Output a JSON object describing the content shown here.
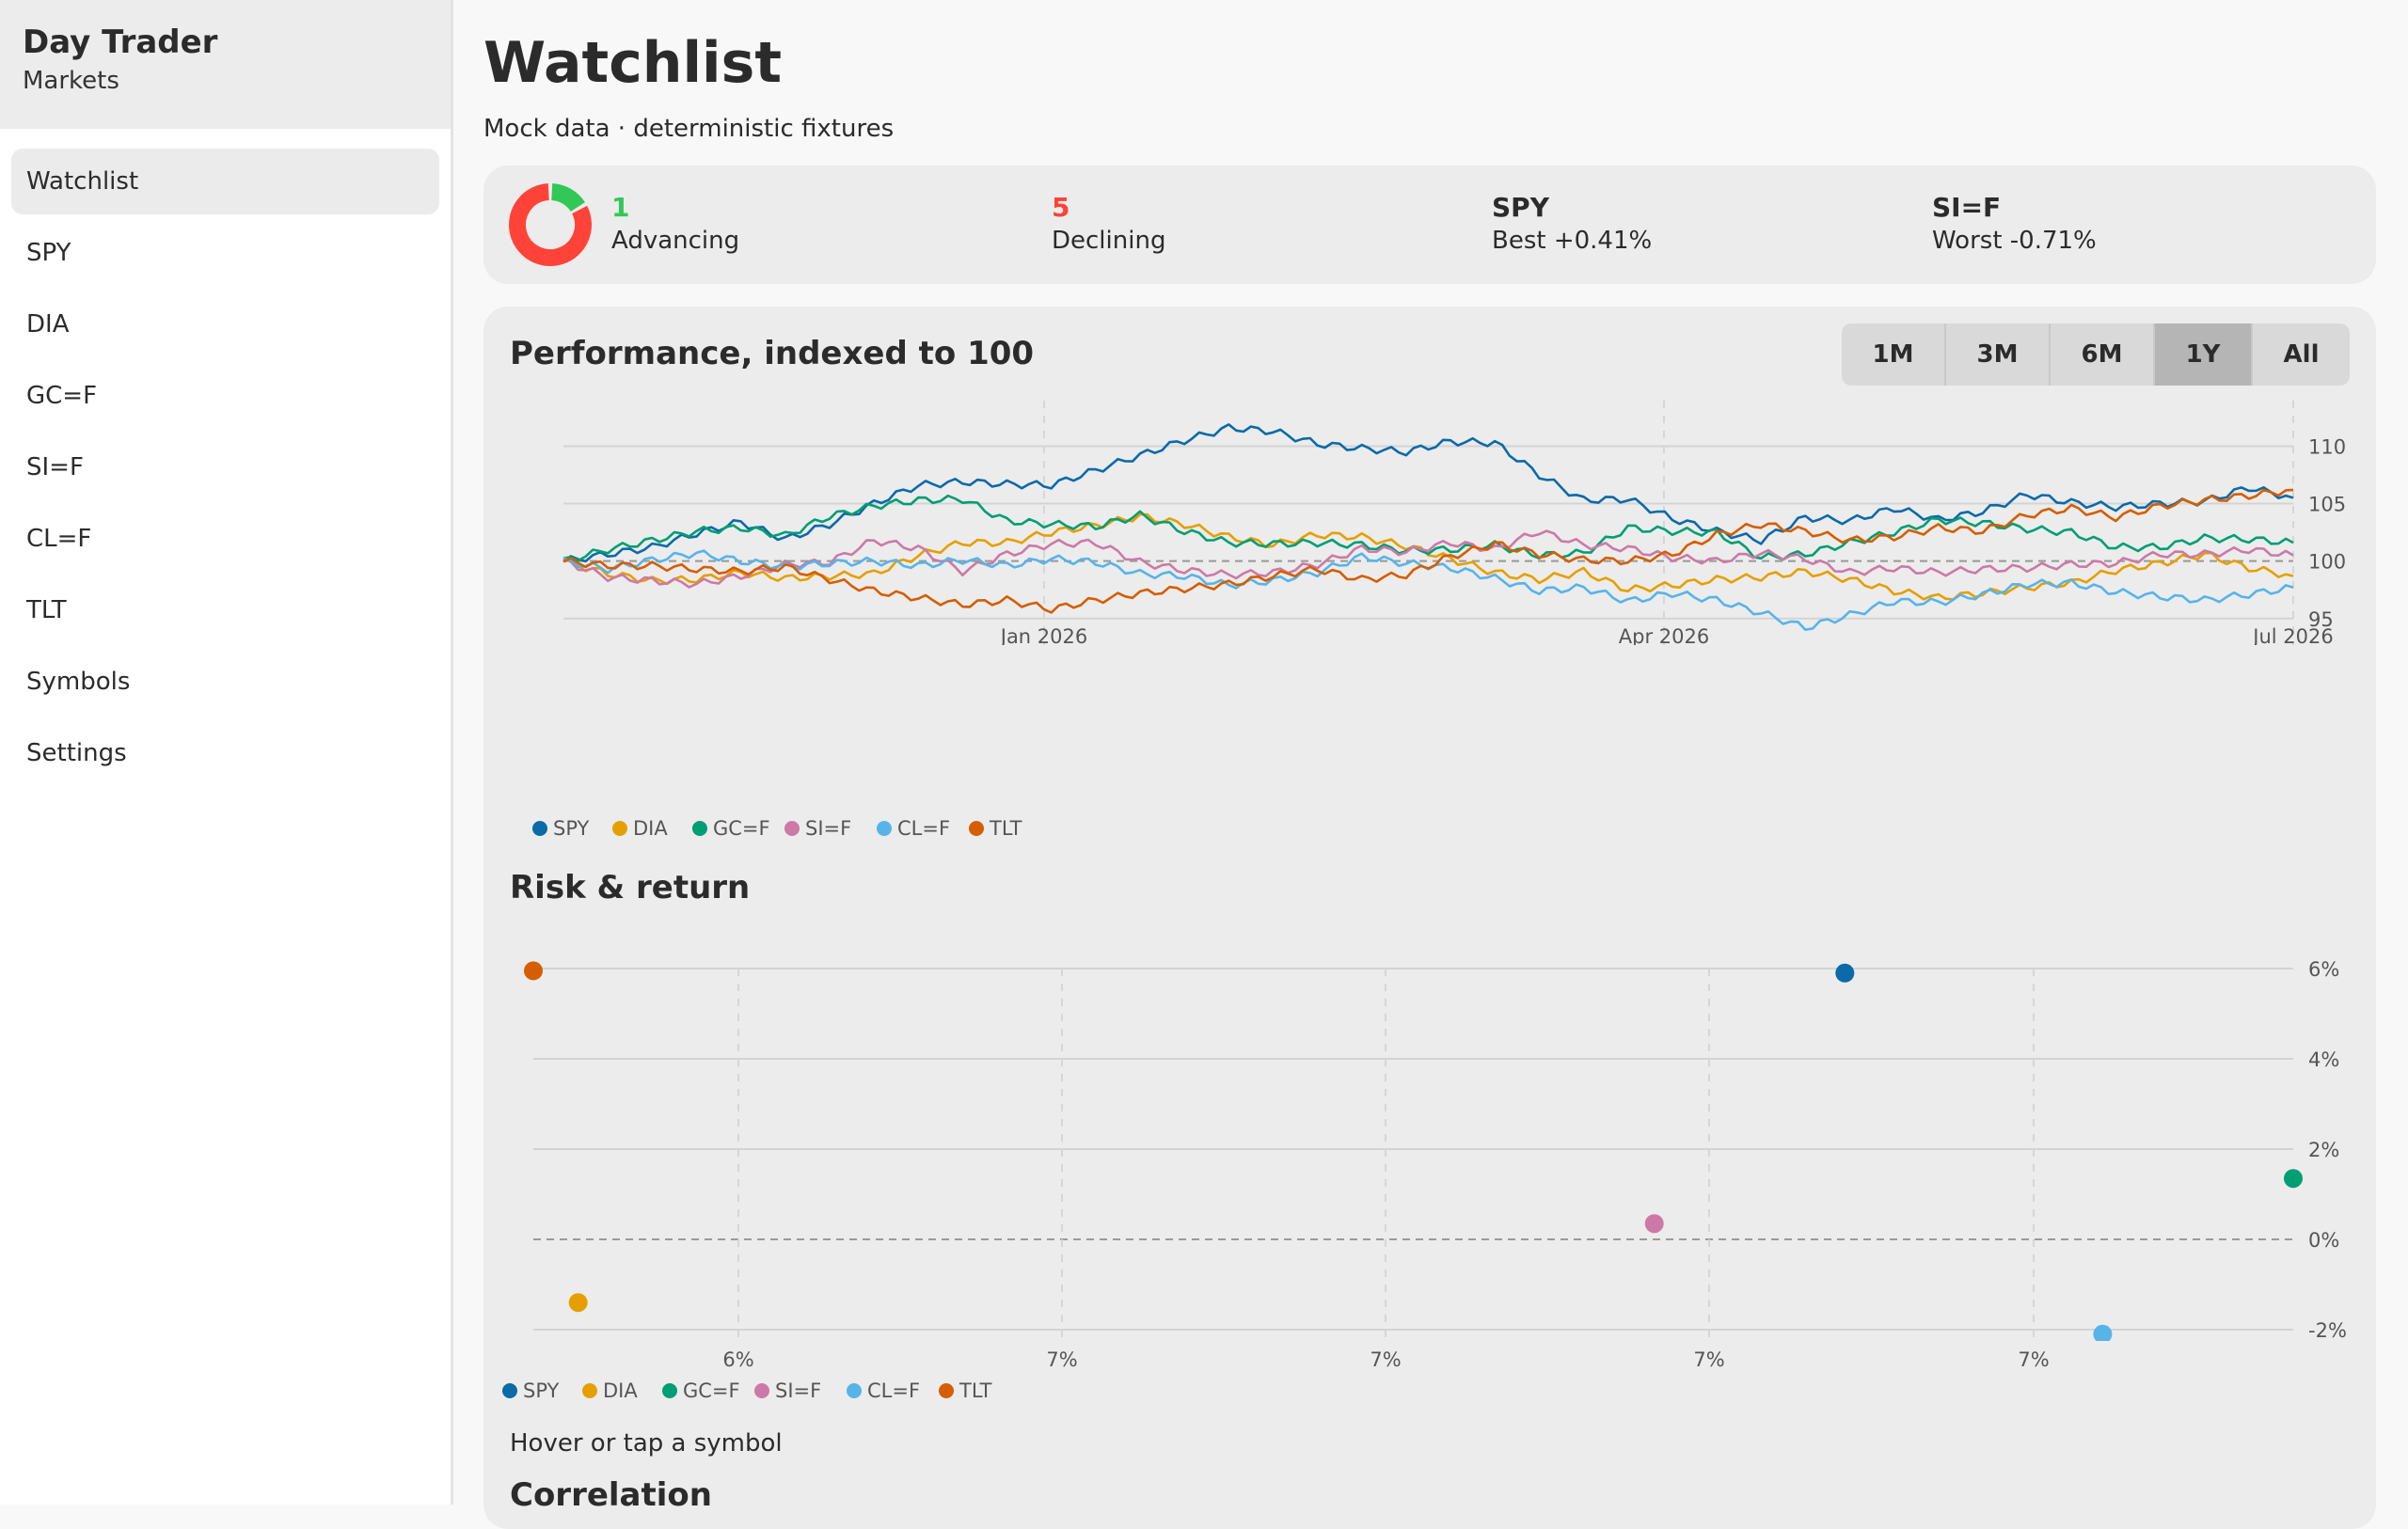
{
  "sidebar": {
    "app_title": "Day Trader",
    "app_subtitle": "Markets",
    "items": [
      {
        "label": "Watchlist",
        "active": true
      },
      {
        "label": "SPY"
      },
      {
        "label": "DIA"
      },
      {
        "label": "GC=F"
      },
      {
        "label": "SI=F"
      },
      {
        "label": "CL=F"
      },
      {
        "label": "TLT"
      },
      {
        "label": "Symbols"
      },
      {
        "label": "Settings"
      }
    ]
  },
  "header": {
    "title": "Watchlist",
    "subtitle": "Mock data · deterministic fixtures"
  },
  "summary": {
    "advancing": {
      "count": "1",
      "label": "Advancing",
      "color": "#33c758"
    },
    "declining": {
      "count": "5",
      "label": "Declining",
      "color": "#ff4338"
    },
    "best": {
      "symbol": "SPY",
      "label": "Best +0.41%"
    },
    "worst": {
      "symbol": "SI=F",
      "label": "Worst -0.71%"
    }
  },
  "performance": {
    "title": "Performance, indexed to 100",
    "ranges": [
      "1M",
      "3M",
      "6M",
      "1Y",
      "All"
    ],
    "selected_range": "1Y"
  },
  "risk": {
    "title": "Risk & return",
    "hint": "Hover or tap a symbol"
  },
  "correlation": {
    "title": "Correlation"
  },
  "chart_data": [
    {
      "type": "line",
      "title": "Performance, indexed to 100",
      "x_ticks": [
        "Jan 2026",
        "Apr 2026",
        "Jul 2026"
      ],
      "y_ticks": [
        95,
        100,
        105,
        110
      ],
      "ylim": [
        94,
        112
      ],
      "reference_line": 100,
      "legend": "bottom-left",
      "grid": true,
      "series": [
        {
          "name": "SPY",
          "color": "#0b6aa8",
          "values": [
            100,
            100.6,
            101.2,
            102.4,
            103.4,
            101.9,
            103.2,
            105.0,
            106.6,
            106.9,
            106.7,
            106.6,
            107.9,
            109.2,
            110.5,
            111.6,
            111.3,
            110.2,
            109.8,
            109.5,
            110.4,
            110.3,
            107.5,
            105.3,
            105.4,
            103.7,
            102.6,
            101.8,
            103.8,
            103.5,
            104.6,
            103.6,
            104.3,
            105.8,
            105.1,
            104.7,
            105.0,
            105.2,
            106.4,
            105.5
          ]
        },
        {
          "name": "DIA",
          "color": "#e69f00",
          "values": [
            100,
            98.9,
            98.3,
            98.4,
            99.0,
            98.5,
            98.7,
            98.9,
            100.5,
            101.6,
            101.6,
            102.5,
            103.1,
            103.9,
            103.2,
            102.1,
            101.4,
            102.3,
            102.1,
            101.3,
            100.2,
            99.0,
            98.4,
            99.1,
            97.5,
            97.9,
            98.4,
            98.6,
            99.1,
            98.4,
            97.4,
            96.8,
            97.2,
            97.7,
            98.1,
            99.2,
            99.8,
            100.6,
            99.4,
            98.7
          ]
        },
        {
          "name": "GC=F",
          "color": "#009e73",
          "values": [
            100,
            101.0,
            101.8,
            102.6,
            102.9,
            102.2,
            103.9,
            104.8,
            105.3,
            105.4,
            103.5,
            103.2,
            103.0,
            104.0,
            102.6,
            101.6,
            101.5,
            101.6,
            101.4,
            100.9,
            101.0,
            101.4,
            100.5,
            100.7,
            102.9,
            102.6,
            102.5,
            100.3,
            100.6,
            101.6,
            102.5,
            103.6,
            103.3,
            102.8,
            102.5,
            101.2,
            101.2,
            102.0,
            101.9,
            101.6
          ]
        },
        {
          "name": "SI=F",
          "color": "#cc79a7",
          "values": [
            100,
            98.6,
            98.3,
            98.0,
            98.7,
            99.7,
            99.9,
            101.8,
            101.1,
            99.1,
            100.6,
            101.5,
            101.6,
            99.9,
            99.2,
            98.8,
            99.0,
            99.7,
            101.1,
            100.8,
            101.6,
            101.0,
            102.6,
            101.4,
            101.1,
            100.3,
            100.0,
            100.7,
            100.2,
            99.0,
            99.4,
            99.0,
            99.3,
            99.4,
            99.7,
            99.8,
            100.6,
            100.6,
            101.0,
            100.5
          ]
        },
        {
          "name": "CL=F",
          "color": "#56b4e9",
          "values": [
            100,
            99.3,
            100.1,
            100.7,
            100.0,
            99.5,
            99.8,
            100.0,
            99.6,
            100.1,
            99.6,
            100.2,
            99.9,
            98.9,
            98.7,
            97.9,
            98.3,
            99.0,
            100.4,
            99.8,
            99.4,
            98.5,
            97.4,
            97.7,
            96.5,
            97.2,
            96.6,
            95.5,
            94.2,
            95.3,
            96.5,
            96.4,
            97.1,
            98.0,
            98.1,
            97.3,
            96.9,
            96.6,
            97.1,
            97.7
          ]
        },
        {
          "name": "TLT",
          "color": "#d55e00",
          "values": [
            100,
            99.6,
            99.6,
            99.3,
            99.1,
            99.5,
            98.4,
            97.4,
            96.8,
            96.2,
            96.6,
            95.8,
            96.6,
            97.2,
            97.6,
            98.0,
            98.7,
            99.3,
            98.4,
            98.8,
            100.4,
            101.5,
            100.6,
            100.1,
            100.0,
            100.6,
            102.3,
            103.2,
            102.6,
            101.8,
            102.1,
            102.9,
            102.6,
            104.0,
            104.6,
            103.8,
            104.8,
            105.3,
            105.7,
            106.2
          ]
        }
      ]
    },
    {
      "type": "scatter",
      "title": "Risk & return",
      "x_tick_labels": [
        "6%",
        "7%",
        "7%",
        "7%",
        "7%"
      ],
      "y_ticks": [
        "6%",
        "4%",
        "2%",
        "0%",
        "-2%"
      ],
      "ylim": [
        -2.5,
        6
      ],
      "reference_line": 0,
      "legend": "bottom-left",
      "grid": true,
      "series": [
        {
          "name": "SPY",
          "color": "#0b6aa8",
          "x": 6.97,
          "y": 5.9
        },
        {
          "name": "DIA",
          "color": "#e69f00",
          "x": 5.84,
          "y": -1.4
        },
        {
          "name": "GC=F",
          "color": "#009e73",
          "x": 7.37,
          "y": 1.35
        },
        {
          "name": "SI=F",
          "color": "#cc79a7",
          "x": 6.8,
          "y": 0.35
        },
        {
          "name": "CL=F",
          "color": "#56b4e9",
          "x": 7.2,
          "y": -2.1
        },
        {
          "name": "TLT",
          "color": "#d55e00",
          "x": 5.8,
          "y": 5.95
        }
      ]
    }
  ]
}
